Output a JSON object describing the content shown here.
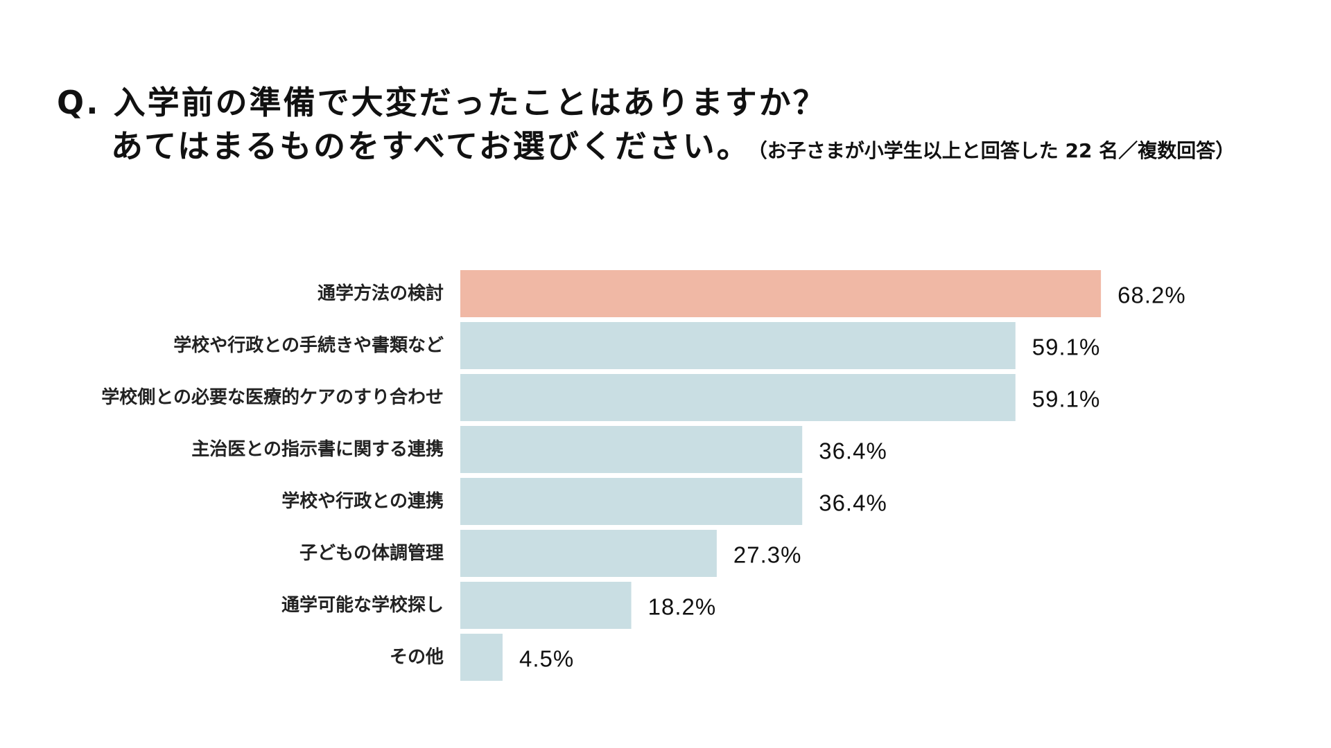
{
  "title": {
    "line1": "Q. 入学前の準備で大変だったことはありますか？",
    "line2": "あてはまるものをすべてお選びください。",
    "note": "（お子さまが小学生以上と回答した 22 名／複数回答）"
  },
  "colors": {
    "highlight": "#F0B8A5",
    "bar": "#C9DEE3",
    "text": "#111111"
  },
  "chart_data": {
    "type": "bar",
    "orientation": "horizontal",
    "title": "Q. 入学前の準備で大変だったことはありますか？ あてはまるものをすべてお選びください。",
    "subtitle": "（お子さまが小学生以上と回答した 22 名／複数回答）",
    "xlabel": "",
    "ylabel": "",
    "unit": "%",
    "xlim": [
      0,
      100
    ],
    "grid": false,
    "categories": [
      "通学方法の検討",
      "学校や行政との手続きや書類など",
      "学校側との必要な医療的ケアのすり合わせ",
      "主治医との指示書に関する連携",
      "学校や行政との連携",
      "子どもの体調管理",
      "通学可能な学校探し",
      "その他"
    ],
    "values": [
      68.2,
      59.1,
      59.1,
      36.4,
      36.4,
      27.3,
      18.2,
      4.5
    ],
    "value_labels": [
      "68.2%",
      "59.1%",
      "59.1%",
      "36.4%",
      "36.4%",
      "27.3%",
      "18.2%",
      "4.5%"
    ],
    "highlighted": [
      true,
      false,
      false,
      false,
      false,
      false,
      false,
      false
    ]
  }
}
